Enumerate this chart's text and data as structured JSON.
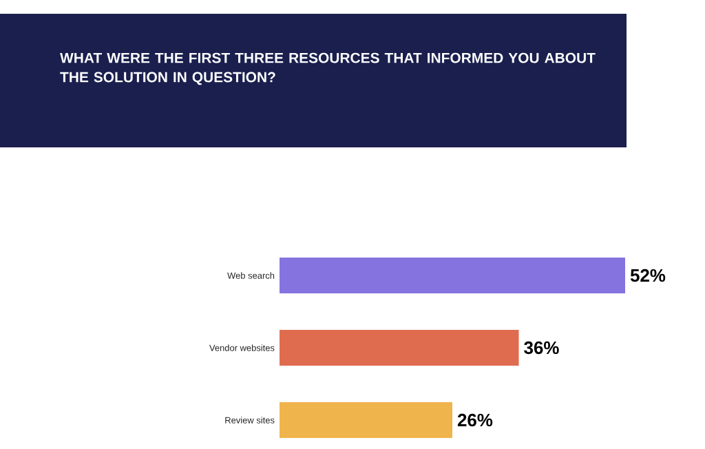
{
  "chart_data": {
    "type": "bar",
    "orientation": "horizontal",
    "title": "WHAT WERE THE FIRST THREE RESOURCES THAT INFORMED YOU ABOUT THE SOLUTION IN QUESTION?",
    "categories": [
      "Web search",
      "Vendor websites",
      "Review sites"
    ],
    "values": [
      52,
      36,
      26
    ],
    "colors": [
      "#8573e0",
      "#e06c50",
      "#f0b44c"
    ],
    "value_labels": [
      "52%",
      "36%",
      "26%"
    ],
    "tick_labels": "y"
  }
}
